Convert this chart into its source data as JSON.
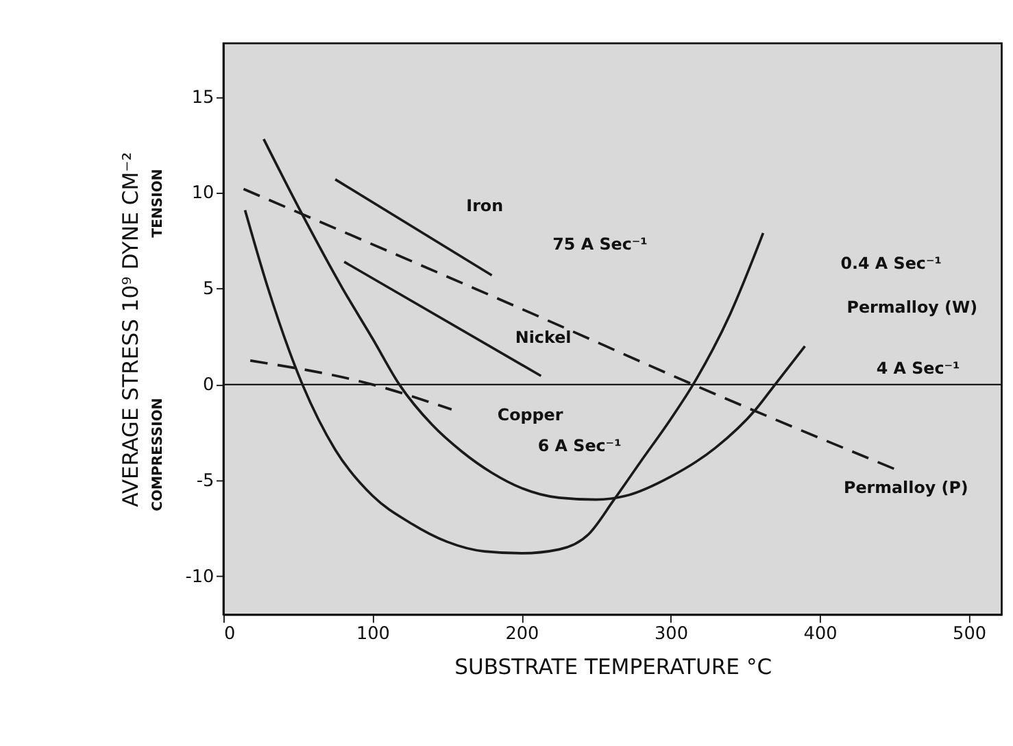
{
  "chart_data": {
    "type": "line",
    "xlabel": "SUBSTRATE  TEMPERATURE  °C",
    "ylabel": "AVERAGE STRESS  10⁹ DYNE  CM⁻²",
    "xlim": [
      0,
      522
    ],
    "ylim": [
      -12,
      17.8
    ],
    "xticks": [
      0,
      100,
      200,
      300,
      400,
      500
    ],
    "yticks": [
      -10,
      -5,
      0,
      5,
      10,
      15
    ],
    "grid": false,
    "series": [
      {
        "color": "#1a1a1a",
        "line_style": "solid",
        "x": [
          75,
          180
        ],
        "values": [
          10.7,
          5.7
        ]
      },
      {
        "color": "#1a1a1a",
        "line_style": "solid",
        "x": [
          81,
          213
        ],
        "values": [
          6.4,
          0.45
        ]
      },
      {
        "color": "#1a1a1a",
        "line_style": "dashed",
        "x": [
          13.5,
          213,
          315,
          450
        ],
        "values": [
          10.2,
          3.5,
          0,
          -4.4
        ]
      },
      {
        "color": "#1a1a1a",
        "line_style": "dashed",
        "x": [
          18,
          100,
          153
        ],
        "values": [
          1.25,
          0,
          -1.3
        ]
      },
      {
        "color": "#1a1a1a",
        "line_style": "solid",
        "x": [
          27,
          52,
          80,
          100,
          118,
          140,
          160,
          180,
          200,
          225,
          250,
          270,
          300,
          330,
          357,
          370,
          390
        ],
        "values": [
          12.8,
          9,
          5,
          2.4,
          0,
          -2.1,
          -3.5,
          -4.6,
          -5.4,
          -5.9,
          -6,
          -5.8,
          -4.8,
          -3.3,
          -1.3,
          0,
          2
        ]
      },
      {
        "color": "#1a1a1a",
        "line_style": "solid",
        "x": [
          14.5,
          30,
          53,
          75,
          100,
          125,
          150,
          175,
          200,
          225,
          245,
          262,
          280,
          300,
          315,
          340,
          362
        ],
        "values": [
          9.1,
          5,
          0,
          -3.4,
          -5.8,
          -7.2,
          -8.2,
          -8.7,
          -8.8,
          -8.6,
          -7.8,
          -6,
          -4,
          -1.8,
          0,
          3.7,
          7.9
        ]
      }
    ],
    "ref_lines": [
      {
        "axis": "y",
        "value": 0,
        "color": "#1a1a1a"
      }
    ],
    "annotations": [
      "TENSION",
      "COMPRESSION",
      "Iron",
      "75 A Sec⁻¹",
      "Nickel",
      "Copper",
      "6 A Sec⁻¹",
      "0.4 A Sec⁻¹",
      "Permalloy (W)",
      "4 A Sec⁻¹",
      "Permalloy (P)"
    ]
  }
}
